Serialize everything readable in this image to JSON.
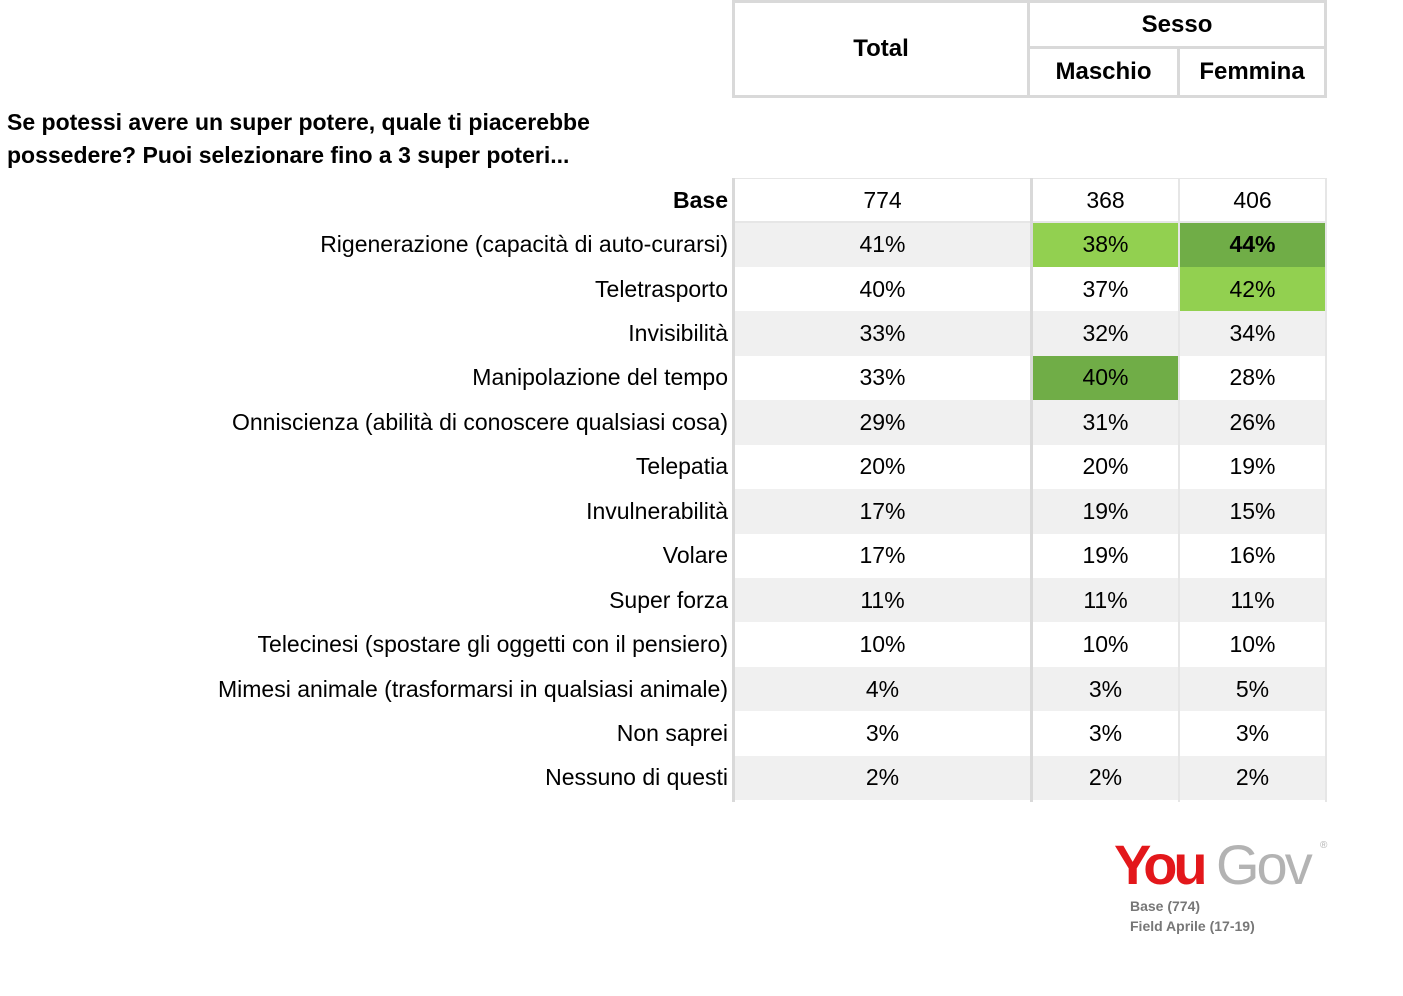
{
  "header": {
    "total_label": "Total",
    "group_label": "Sesso",
    "sub_labels": [
      "Maschio",
      "Femmina"
    ]
  },
  "question": {
    "line1": "Se potessi avere un super potere, quale ti piacerebbe",
    "line2": "possedere? Puoi selezionare fino a 3 super poteri..."
  },
  "colors": {
    "highlight_light": "#92d050",
    "highlight_dark": "#70ad47",
    "row_shade": "#f0f0f0",
    "logo_red": "#e3171b",
    "logo_grey": "#b3b3b3"
  },
  "chart_data": {
    "type": "table",
    "columns": [
      "Total",
      "Maschio",
      "Femmina"
    ],
    "base": {
      "label": "Base",
      "values": [
        "774",
        "368",
        "406"
      ]
    },
    "rows": [
      {
        "label": "Rigenerazione (capacità di auto-curarsi)",
        "values": [
          "41%",
          "38%",
          "44%"
        ],
        "highlight": [
          null,
          "light",
          "dark"
        ],
        "bold": [
          false,
          false,
          true
        ]
      },
      {
        "label": "Teletrasporto",
        "values": [
          "40%",
          "37%",
          "42%"
        ],
        "highlight": [
          null,
          null,
          "light"
        ],
        "bold": [
          false,
          false,
          false
        ]
      },
      {
        "label": "Invisibilità",
        "values": [
          "33%",
          "32%",
          "34%"
        ],
        "highlight": [
          null,
          null,
          null
        ],
        "bold": [
          false,
          false,
          false
        ]
      },
      {
        "label": "Manipolazione del tempo",
        "values": [
          "33%",
          "40%",
          "28%"
        ],
        "highlight": [
          null,
          "dark",
          null
        ],
        "bold": [
          false,
          false,
          false
        ]
      },
      {
        "label": "Onniscienza (abilità di conoscere qualsiasi cosa)",
        "values": [
          "29%",
          "31%",
          "26%"
        ],
        "highlight": [
          null,
          null,
          null
        ],
        "bold": [
          false,
          false,
          false
        ]
      },
      {
        "label": "Telepatia",
        "values": [
          "20%",
          "20%",
          "19%"
        ],
        "highlight": [
          null,
          null,
          null
        ],
        "bold": [
          false,
          false,
          false
        ]
      },
      {
        "label": "Invulnerabilità",
        "values": [
          "17%",
          "19%",
          "15%"
        ],
        "highlight": [
          null,
          null,
          null
        ],
        "bold": [
          false,
          false,
          false
        ]
      },
      {
        "label": "Volare",
        "values": [
          "17%",
          "19%",
          "16%"
        ],
        "highlight": [
          null,
          null,
          null
        ],
        "bold": [
          false,
          false,
          false
        ]
      },
      {
        "label": "Super forza",
        "values": [
          "11%",
          "11%",
          "11%"
        ],
        "highlight": [
          null,
          null,
          null
        ],
        "bold": [
          false,
          false,
          false
        ]
      },
      {
        "label": "Telecinesi (spostare gli oggetti con il pensiero)",
        "values": [
          "10%",
          "10%",
          "10%"
        ],
        "highlight": [
          null,
          null,
          null
        ],
        "bold": [
          false,
          false,
          false
        ]
      },
      {
        "label": "Mimesi animale (trasformarsi in qualsiasi animale)",
        "values": [
          "4%",
          "3%",
          "5%"
        ],
        "highlight": [
          null,
          null,
          null
        ],
        "bold": [
          false,
          false,
          false
        ]
      },
      {
        "label": "Non saprei",
        "values": [
          "3%",
          "3%",
          "3%"
        ],
        "highlight": [
          null,
          null,
          null
        ],
        "bold": [
          false,
          false,
          false
        ]
      },
      {
        "label": "Nessuno di questi",
        "values": [
          "2%",
          "2%",
          "2%"
        ],
        "highlight": [
          null,
          null,
          null
        ],
        "bold": [
          false,
          false,
          false
        ]
      }
    ]
  },
  "logo": {
    "part1": "You",
    "part2": "Gov",
    "mark": "®"
  },
  "footer": {
    "base_note": "Base (774)",
    "field_note": "Field Aprile (17-19)"
  }
}
